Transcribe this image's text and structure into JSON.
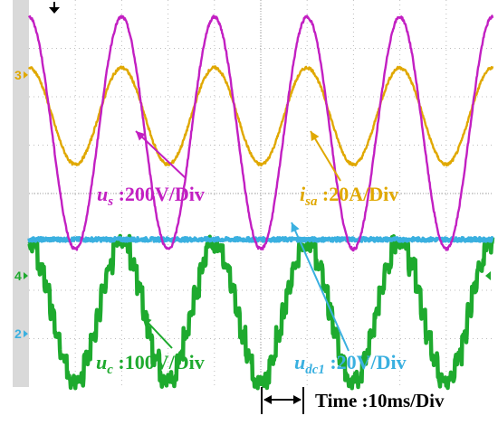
{
  "chart_data": {
    "type": "line",
    "xlabel": "",
    "ylabel": "",
    "x_unit": "ms",
    "time_per_div": 10,
    "x_range": [
      0,
      100
    ],
    "divisions": {
      "x": 10,
      "y": 8
    },
    "grid": true,
    "series": [
      {
        "name": "u_s",
        "label_base": "u",
        "label_sub": "s",
        "scale": ":200V/Div",
        "waveform": "sine",
        "period_ms": 20,
        "phase_deg": 90,
        "color": "#c21fc2",
        "center_div": 5.25,
        "amplitude_div": 2.4
      },
      {
        "name": "i_sa",
        "label_base": "i",
        "label_sub": "sa",
        "scale": ":20A/Div",
        "waveform": "sine",
        "period_ms": 20,
        "phase_deg": 90,
        "color": "#e0a800",
        "center_div": 5.6,
        "amplitude_div": 1.0
      },
      {
        "name": "u_dc1",
        "label_base": "u",
        "label_sub": "dc1",
        "scale": ":20V/Div",
        "waveform": "dc",
        "color": "#3ab0e0",
        "level_div": 3.05
      },
      {
        "name": "u_c",
        "label_base": "u",
        "label_sub": "c",
        "scale": ":100V/Div",
        "waveform": "multilevel",
        "period_ms": 20,
        "phase_deg": 90,
        "color": "#1eaa2e",
        "center_div": 1.55,
        "amplitude_div": 1.4
      }
    ],
    "channel_markers": [
      {
        "label": "3",
        "color": "#e0a800",
        "level_div": 6.45
      },
      {
        "label": "4",
        "color": "#1eaa2e",
        "level_div": 2.3
      },
      {
        "label": "2",
        "color": "#3ab0e0",
        "level_div": 1.1
      }
    ],
    "time_annotation": "Time :10ms/Div"
  }
}
